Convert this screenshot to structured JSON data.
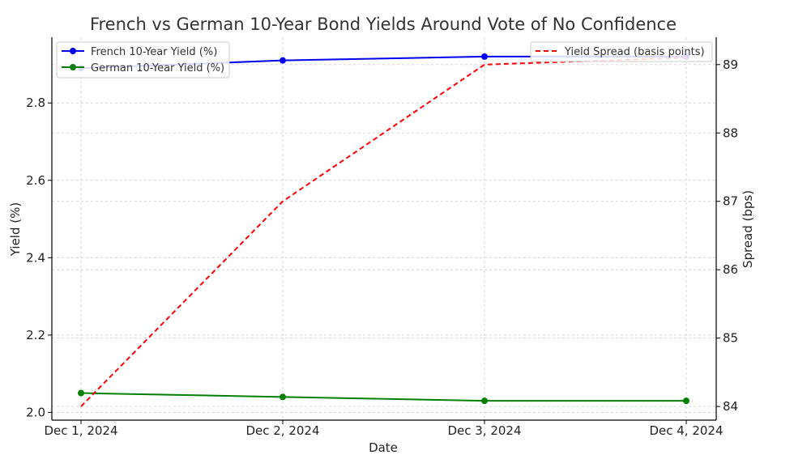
{
  "chart_data": {
    "type": "line",
    "title": "French vs German 10-Year Bond Yields Around Vote of No Confidence",
    "xlabel": "Date",
    "ylabel": "Yield (%)",
    "y2label": "Spread (bps)",
    "categories": [
      "Dec 1, 2024",
      "Dec 2, 2024",
      "Dec 3, 2024",
      "Dec 4, 2024"
    ],
    "ylim": [
      1.98,
      2.97
    ],
    "y2lim": [
      83.8,
      89.4
    ],
    "yticks": [
      2.0,
      2.2,
      2.4,
      2.6,
      2.8
    ],
    "y2ticks": [
      84,
      85,
      86,
      87,
      88,
      89
    ],
    "grid": true,
    "series": [
      {
        "name": "French 10-Year Yield (%)",
        "axis": "left",
        "color": "#0000ee",
        "style": "solid",
        "marker": "circle",
        "values": [
          2.89,
          2.91,
          2.92,
          2.92
        ]
      },
      {
        "name": "German 10-Year Yield (%)",
        "axis": "left",
        "color": "#007f00",
        "style": "solid",
        "marker": "circle",
        "values": [
          2.05,
          2.04,
          2.03,
          2.03
        ]
      },
      {
        "name": "Yield Spread (basis points)",
        "axis": "right",
        "color": "#ff0000",
        "style": "dashed",
        "marker": "none",
        "values": [
          84,
          87,
          89,
          89.1
        ]
      }
    ],
    "legends": [
      {
        "placement": "upper-left",
        "entries": [
          "French 10-Year Yield (%)",
          "German 10-Year Yield (%)"
        ]
      },
      {
        "placement": "upper-right",
        "entries": [
          "Yield Spread (basis points)"
        ]
      }
    ]
  }
}
